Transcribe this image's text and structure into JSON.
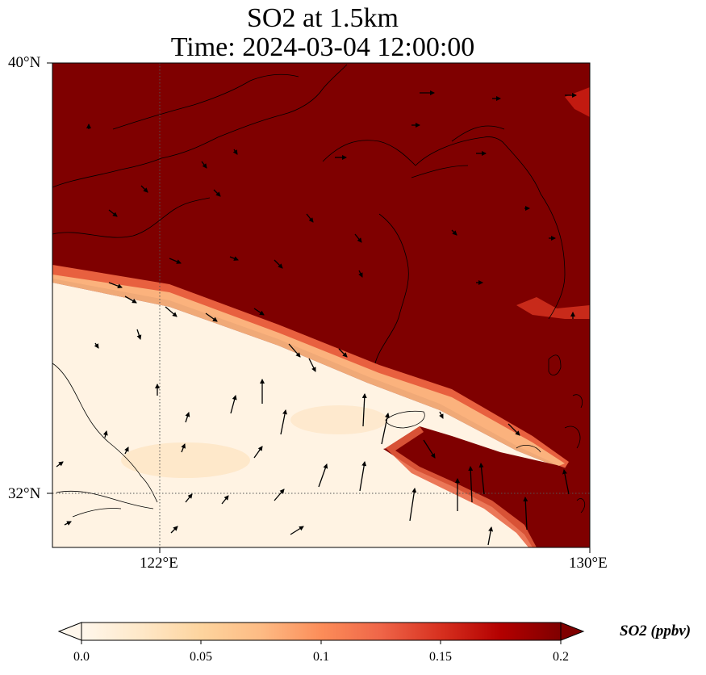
{
  "title": {
    "line1": "SO2 at 1.5km",
    "line2": "Time: 2024-03-04 12:00:00"
  },
  "axes": {
    "lat_ticks": [
      "40°N",
      "32°N"
    ],
    "lon_ticks": [
      "122°E",
      "130°E"
    ]
  },
  "colorbar": {
    "label": "SO2 (ppbv)",
    "ticks": [
      "0.0",
      "0.05",
      "0.1",
      "0.15",
      "0.2"
    ],
    "min": 0.0,
    "max": 0.2,
    "extend": "both",
    "cmap": [
      "#fff7ec",
      "#fee8c8",
      "#fdd49e",
      "#fdbb84",
      "#fc8d59",
      "#ef6548",
      "#d7301f",
      "#b30000",
      "#7f0000"
    ]
  },
  "map_data": {
    "lon_range": [
      120,
      130
    ],
    "lat_range": [
      31,
      40
    ],
    "gridlines": {
      "lon": [
        122
      ],
      "lat": [
        32
      ],
      "style": "dotted"
    },
    "field_regions": [
      {
        "name": "high",
        "value": 0.2,
        "color": "#7f0000"
      },
      {
        "name": "low",
        "value": 0.0,
        "color": "#fff7ec"
      }
    ]
  }
}
